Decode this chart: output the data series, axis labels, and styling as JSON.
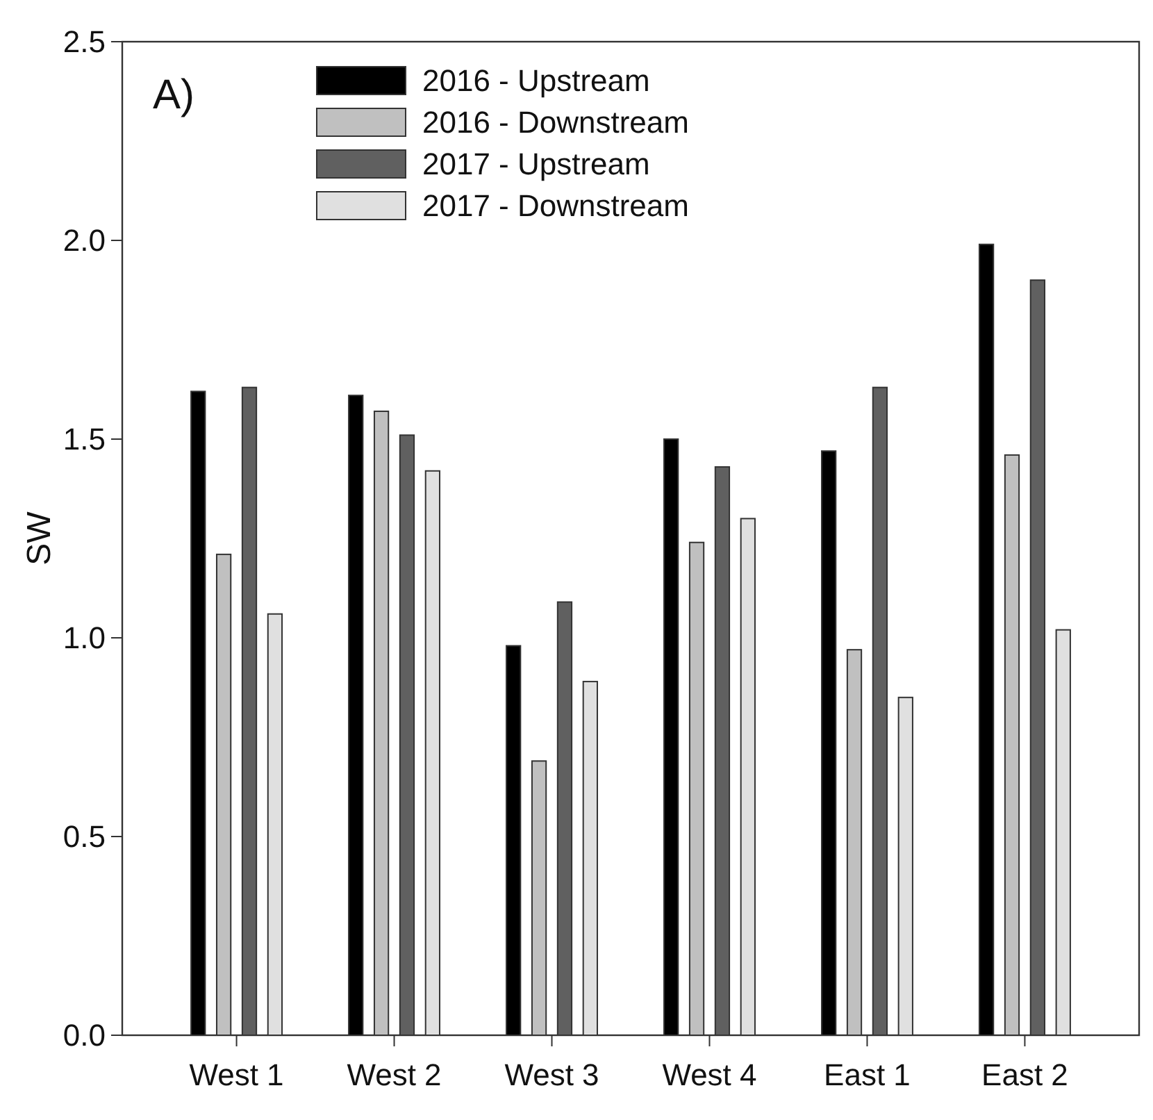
{
  "chart_data": {
    "type": "bar",
    "ylabel": "SW",
    "annotations": [
      "A)"
    ],
    "categories": [
      "West 1",
      "West 2",
      "West 3",
      "West 4",
      "East 1",
      "East 2"
    ],
    "series": [
      {
        "name": "2016 - Upstream",
        "color": "#000000",
        "values": [
          1.62,
          1.61,
          0.98,
          1.5,
          1.47,
          1.99
        ]
      },
      {
        "name": "2016 - Downstream",
        "color": "#c0c0c0",
        "values": [
          1.21,
          1.57,
          0.69,
          1.24,
          0.97,
          1.46
        ]
      },
      {
        "name": "2017 - Upstream",
        "color": "#606060",
        "values": [
          1.63,
          1.51,
          1.09,
          1.43,
          1.63,
          1.9
        ]
      },
      {
        "name": "2017 - Downstream",
        "color": "#e0e0e0",
        "values": [
          1.06,
          1.42,
          0.89,
          1.3,
          0.85,
          1.02
        ]
      }
    ],
    "ylim": [
      0,
      2.5
    ],
    "yticks": [
      {
        "value": 0,
        "label": "0.0"
      },
      {
        "value": 0.5,
        "label": "0.5"
      },
      {
        "value": 1,
        "label": "1.0"
      },
      {
        "value": 1.5,
        "label": "1.5"
      },
      {
        "value": 2,
        "label": "2.0"
      },
      {
        "value": 2.5,
        "label": "2.5"
      }
    ],
    "grid": false,
    "legend": "top left"
  }
}
